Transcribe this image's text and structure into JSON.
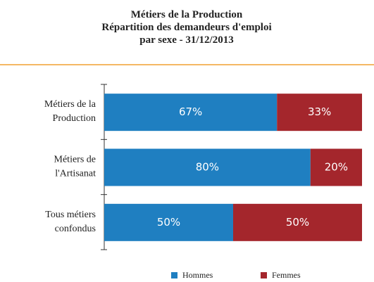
{
  "chart_data": {
    "type": "bar",
    "orientation": "horizontal",
    "stacked": true,
    "title": "Métiers de la Production\nRépartition des demandeurs d'emploi\npar sexe - 31/12/2013",
    "categories": [
      "Métiers de la\nProduction",
      "Métiers de\nl'Artisanat",
      "Tous métiers\nconfondus"
    ],
    "series": [
      {
        "name": "Hommes",
        "color": "#1f7fc1",
        "values": [
          67,
          80,
          50
        ],
        "value_labels": [
          "67%",
          "80%",
          "50%"
        ]
      },
      {
        "name": "Femmes",
        "color": "#a4262c",
        "values": [
          33,
          20,
          50
        ],
        "value_labels": [
          "33%",
          "20%",
          "50%"
        ]
      }
    ],
    "xlim": [
      0,
      100
    ],
    "legend": "bottom"
  }
}
